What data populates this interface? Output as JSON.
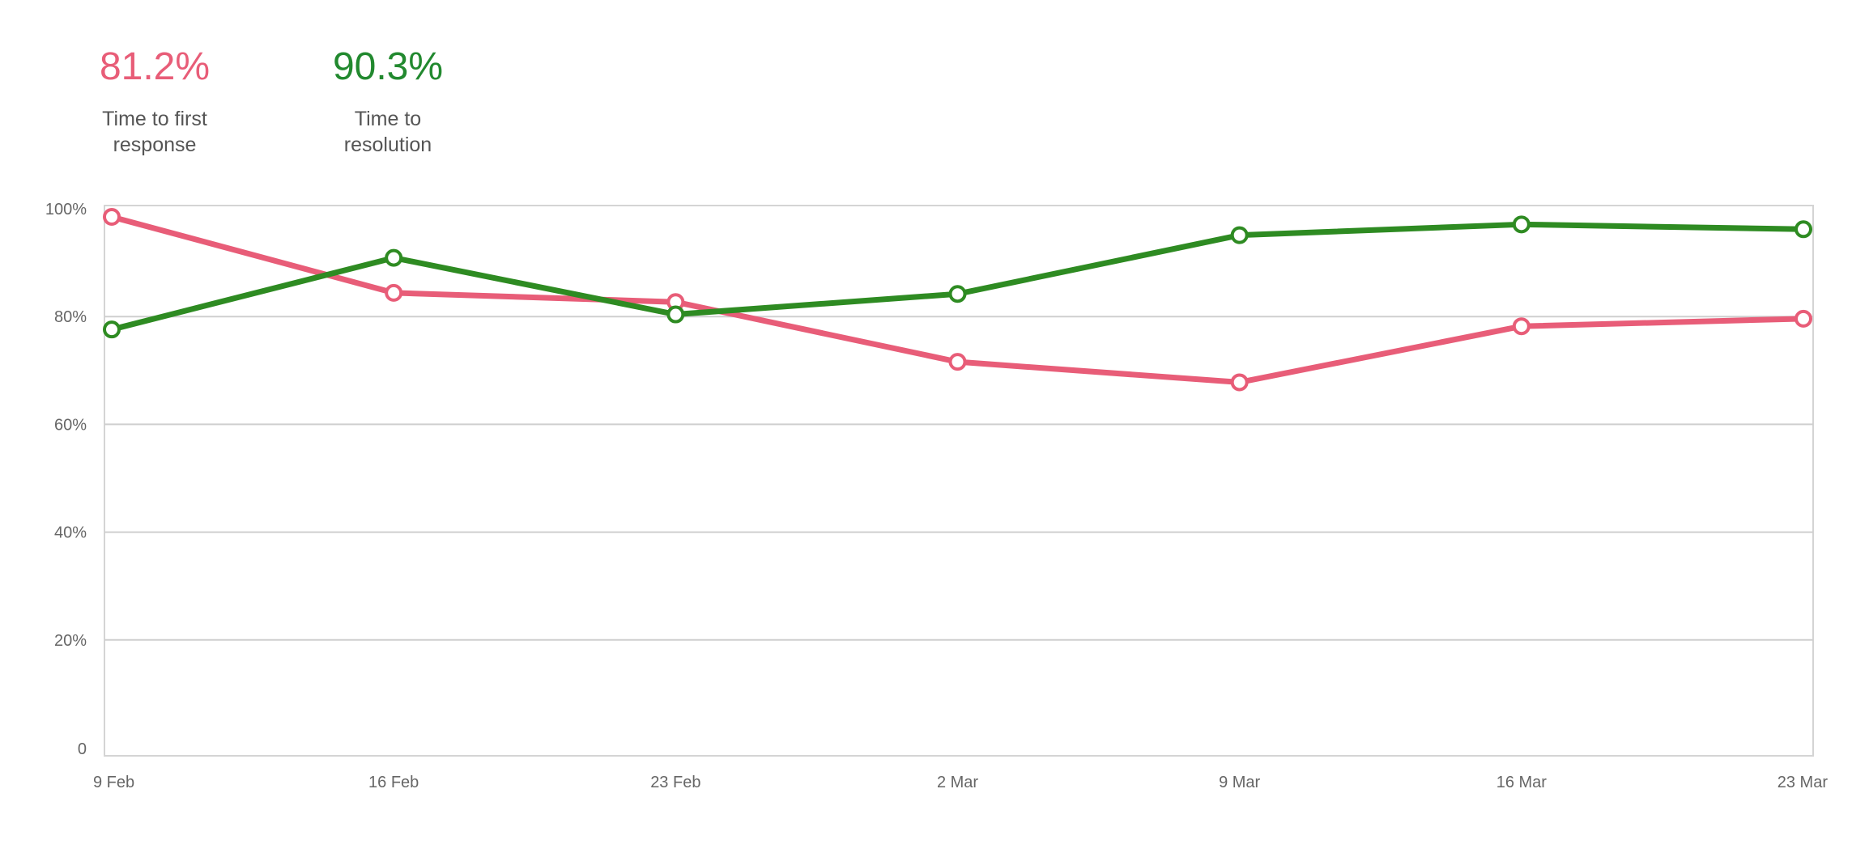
{
  "kpis": [
    {
      "value": "81.2%",
      "label_line1": "Time to first",
      "label_line2": "response",
      "color": "#e85d78"
    },
    {
      "value": "90.3%",
      "label_line1": "Time to",
      "label_line2": "resolution",
      "color": "#22892f"
    }
  ],
  "chart_data": {
    "type": "line",
    "categories": [
      "9 Feb",
      "16 Feb",
      "23 Feb",
      "2 Mar",
      "9 Mar",
      "16 Mar",
      "23 Mar"
    ],
    "ylim": [
      0,
      100
    ],
    "yticks": [
      0,
      20,
      40,
      60,
      80,
      100
    ],
    "ytick_labels": [
      "0",
      "20%",
      "40%",
      "60%",
      "80%",
      "100%"
    ],
    "grid": true,
    "series": [
      {
        "key": "first_response",
        "color": "#e85d78",
        "values": [
          98.5,
          84.4,
          82.7,
          71.6,
          67.8,
          78.2,
          79.6
        ]
      },
      {
        "key": "resolution",
        "color": "#2e8b22",
        "values": [
          77.6,
          90.9,
          80.4,
          84.2,
          95.1,
          97.1,
          96.2
        ]
      }
    ]
  }
}
